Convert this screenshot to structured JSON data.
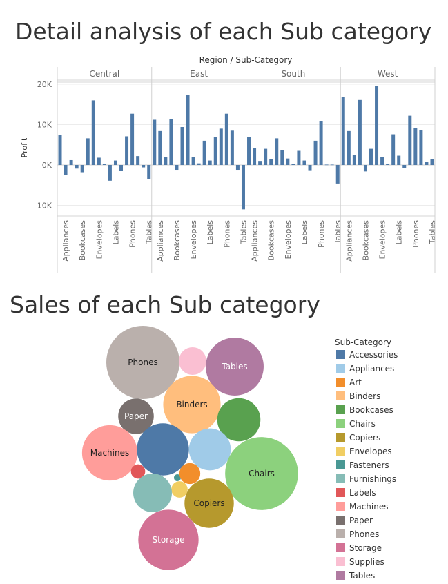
{
  "titles": {
    "bar": "Detail analysis of each Sub category",
    "bubble": "Sales of each Sub category"
  },
  "chart_data": [
    {
      "type": "bar",
      "title": "Detail analysis of each Sub category",
      "column_header": "Region / Sub-Category",
      "ylabel": "Profit",
      "ylim": [
        -12500,
        21500
      ],
      "yticks": [
        -10000,
        0,
        10000,
        20000
      ],
      "ytick_labels": [
        "-10K",
        "0K",
        "10K",
        "20K"
      ],
      "regions": [
        "Central",
        "East",
        "South",
        "West"
      ],
      "sub_categories": [
        "Accessories",
        "Appliances",
        "Art",
        "Binders",
        "Bookcases",
        "Chairs",
        "Copiers",
        "Envelopes",
        "Fasteners",
        "Furnishings",
        "Labels",
        "Machines",
        "Paper",
        "Phones",
        "Storage",
        "Supplies",
        "Tables"
      ],
      "shown_tick_labels": [
        "Appliances",
        "Bookcases",
        "Envelopes",
        "Labels",
        "Phones",
        "Tables"
      ],
      "color": "#4e79a7",
      "values": {
        "Central": [
          7500,
          -2500,
          1200,
          -900,
          -1800,
          6600,
          16000,
          1800,
          200,
          -3900,
          1100,
          -1400,
          7100,
          12700,
          2200,
          -600,
          -3500
        ],
        "East": [
          11200,
          8400,
          2000,
          11300,
          -1200,
          9400,
          17300,
          1900,
          400,
          6000,
          1100,
          7000,
          9000,
          12700,
          8500,
          -1200,
          -11000
        ],
        "South": [
          7000,
          4100,
          1000,
          4000,
          1500,
          6600,
          3700,
          1600,
          200,
          3500,
          1100,
          -1300,
          6000,
          10900,
          100,
          100,
          -4600
        ],
        "West": [
          16800,
          8400,
          2500,
          16100,
          -1600,
          4000,
          19500,
          1900,
          300,
          7600,
          2300,
          -700,
          12200,
          9100,
          8700,
          700,
          1500
        ]
      }
    },
    {
      "type": "bubble",
      "title": "Sales of each Sub category",
      "legend_title": "Sub-Category",
      "legend_placement": "right",
      "bubbles": [
        {
          "name": "Phones",
          "label": "Phones",
          "color": "#bab0ac",
          "value": 330000
        },
        {
          "name": "Supplies",
          "label": "",
          "color": "#fabfd2",
          "value": 47000
        },
        {
          "name": "Tables",
          "label": "Tables",
          "color": "#b07aa1",
          "value": 207000
        },
        {
          "name": "Binders",
          "label": "Binders",
          "color": "#ffbe7d",
          "value": 203000
        },
        {
          "name": "Paper",
          "label": "Paper",
          "color": "#79706e",
          "value": 78000
        },
        {
          "name": "Bookcases",
          "label": "",
          "color": "#59a14f",
          "value": 115000
        },
        {
          "name": "Machines",
          "label": "Machines",
          "color": "#ff9d9a",
          "value": 189000
        },
        {
          "name": "Accessories",
          "label": "",
          "color": "#4e79a7",
          "value": 167000
        },
        {
          "name": "Appliances",
          "label": "",
          "color": "#a0cbe8",
          "value": 108000
        },
        {
          "name": "Chairs",
          "label": "Chairs",
          "color": "#8cd17d",
          "value": 328000
        },
        {
          "name": "Labels",
          "label": "",
          "color": "#e15759",
          "value": 12500
        },
        {
          "name": "Fasteners",
          "label": "",
          "color": "#499894",
          "value": 3000
        },
        {
          "name": "Art",
          "label": "",
          "color": "#f28e2b",
          "value": 27000
        },
        {
          "name": "Envelopes",
          "label": "",
          "color": "#f1ce63",
          "value": 16500
        },
        {
          "name": "Furnishings",
          "label": "",
          "color": "#86bcb6",
          "value": 92000
        },
        {
          "name": "Copiers",
          "label": "Copiers",
          "color": "#b6992d",
          "value": 150000
        },
        {
          "name": "Storage",
          "label": "Storage",
          "color": "#d37295",
          "value": 224000
        }
      ],
      "legend": [
        {
          "name": "Accessories",
          "color": "#4e79a7"
        },
        {
          "name": "Appliances",
          "color": "#a0cbe8"
        },
        {
          "name": "Art",
          "color": "#f28e2b"
        },
        {
          "name": "Binders",
          "color": "#ffbe7d"
        },
        {
          "name": "Bookcases",
          "color": "#59a14f"
        },
        {
          "name": "Chairs",
          "color": "#8cd17d"
        },
        {
          "name": "Copiers",
          "color": "#b6992d"
        },
        {
          "name": "Envelopes",
          "color": "#f1ce63"
        },
        {
          "name": "Fasteners",
          "color": "#499894"
        },
        {
          "name": "Furnishings",
          "color": "#86bcb6"
        },
        {
          "name": "Labels",
          "color": "#e15759"
        },
        {
          "name": "Machines",
          "color": "#ff9d9a"
        },
        {
          "name": "Paper",
          "color": "#79706e"
        },
        {
          "name": "Phones",
          "color": "#bab0ac"
        },
        {
          "name": "Storage",
          "color": "#d37295"
        },
        {
          "name": "Supplies",
          "color": "#fabfd2"
        },
        {
          "name": "Tables",
          "color": "#b07aa1"
        }
      ]
    }
  ]
}
